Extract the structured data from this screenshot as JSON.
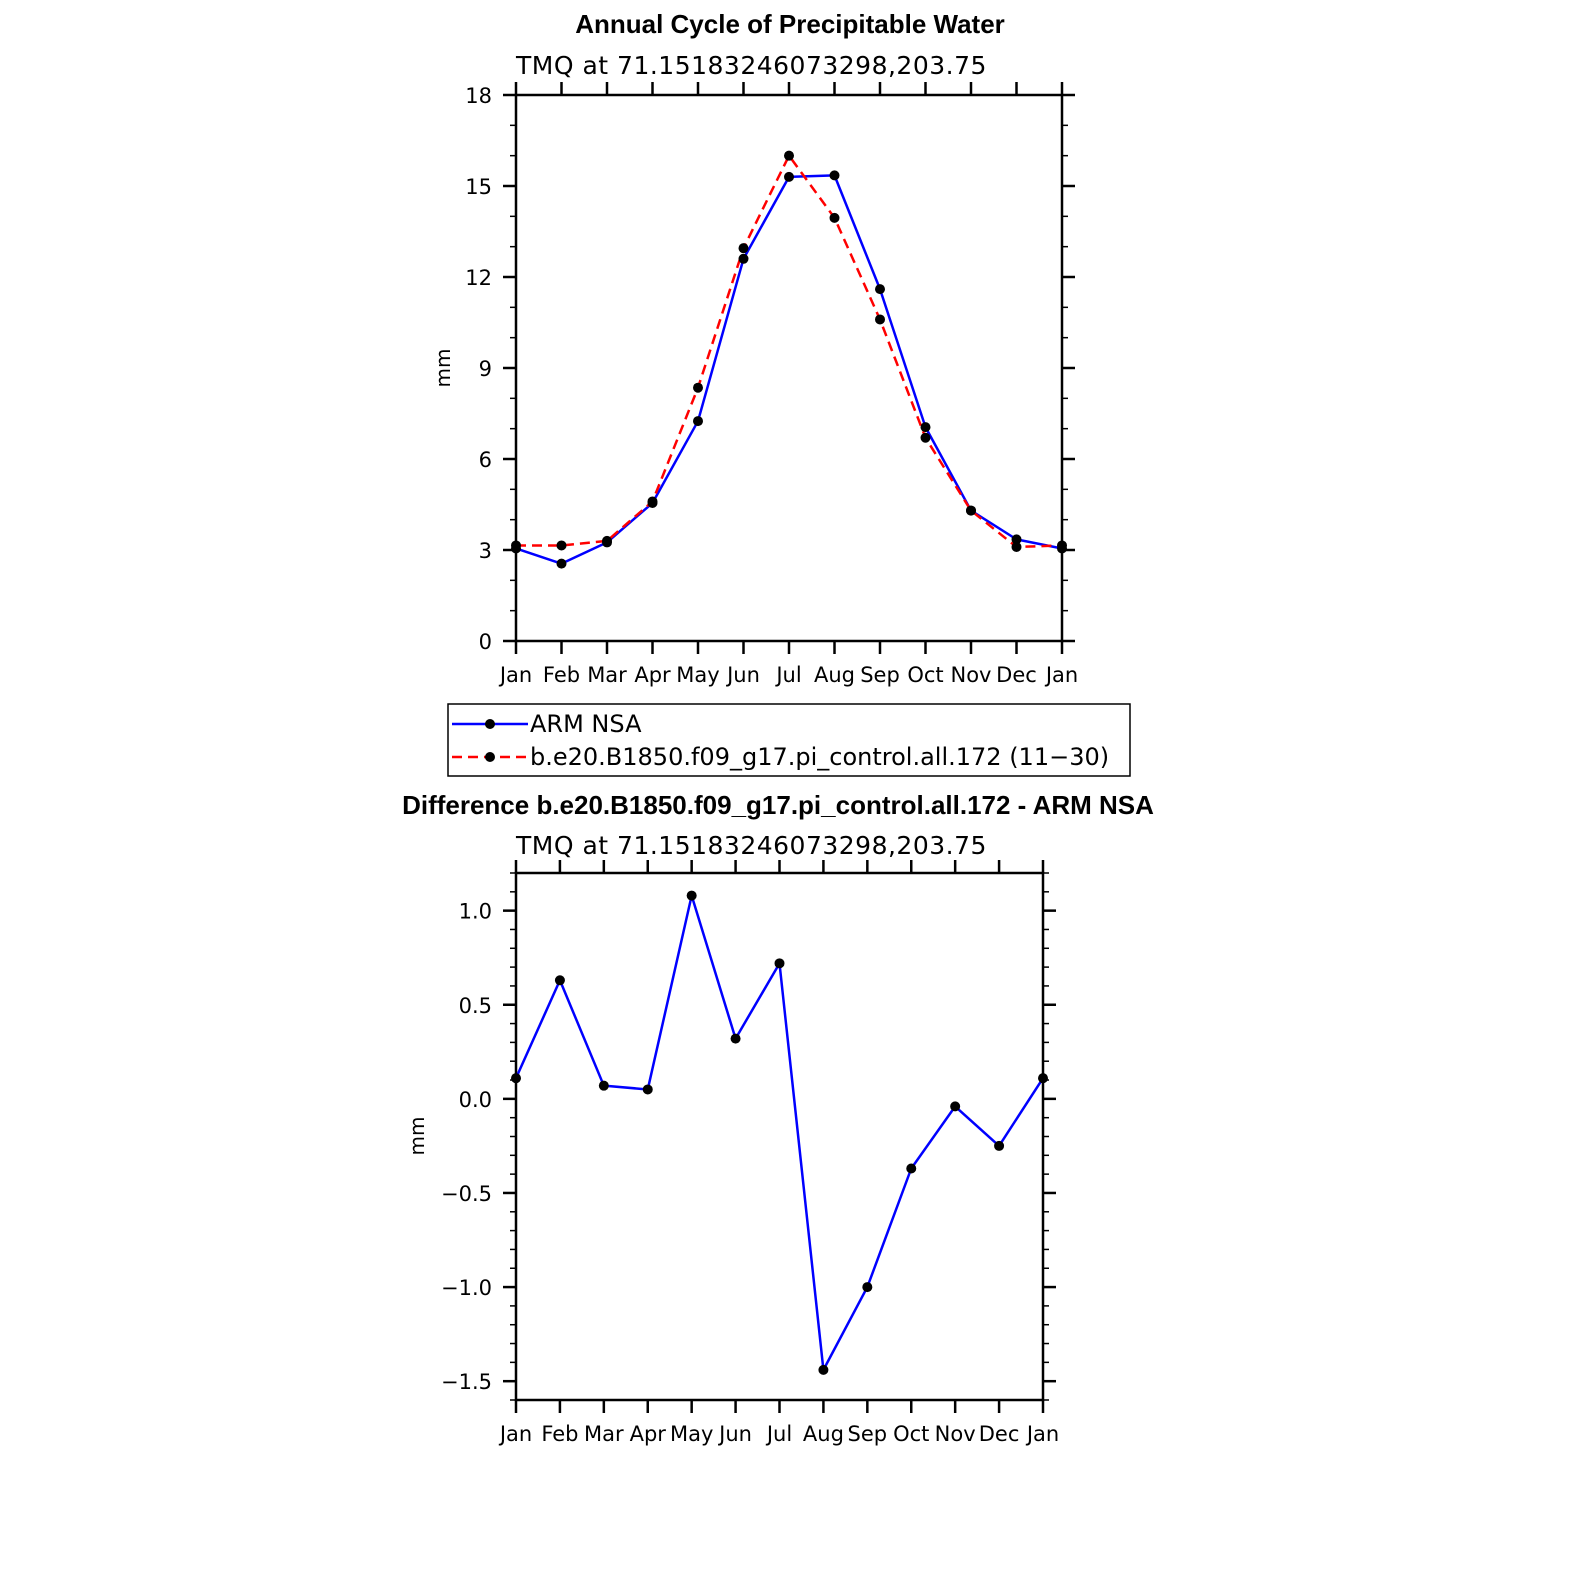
{
  "chart_data": [
    {
      "type": "line",
      "title": "Annual Cycle of Precipitable Water",
      "subtitle": "TMQ at 71.15183246073298,203.75",
      "ylabel": "mm",
      "xlabel": "",
      "categories": [
        "Jan",
        "Feb",
        "Mar",
        "Apr",
        "May",
        "Jun",
        "Jul",
        "Aug",
        "Sep",
        "Oct",
        "Nov",
        "Dec",
        "Jan"
      ],
      "ylim": [
        0,
        18
      ],
      "yticks": [
        0,
        3,
        6,
        9,
        12,
        15,
        18
      ],
      "y_minor_step": 1,
      "series": [
        {
          "name": "ARM NSA",
          "color": "#0000ff",
          "dash": "solid",
          "values": [
            3.05,
            2.55,
            3.25,
            4.55,
            7.25,
            12.6,
            15.3,
            15.35,
            11.6,
            7.05,
            4.3,
            3.35,
            3.05
          ]
        },
        {
          "name": "b.e20.B1850.f09_g17.pi_control.all.172 (11−30)",
          "color": "#ff0000",
          "dash": "dashed",
          "values": [
            3.15,
            3.15,
            3.3,
            4.6,
            8.35,
            12.95,
            16.0,
            13.95,
            10.6,
            6.7,
            4.3,
            3.1,
            3.15
          ]
        }
      ],
      "legend_position": "bottom"
    },
    {
      "type": "line",
      "title": "Difference b.e20.B1850.f09_g17.pi_control.all.172 - ARM NSA",
      "subtitle": "TMQ at 71.15183246073298,203.75",
      "ylabel": "mm",
      "xlabel": "",
      "categories": [
        "Jan",
        "Feb",
        "Mar",
        "Apr",
        "May",
        "Jun",
        "Jul",
        "Aug",
        "Sep",
        "Oct",
        "Nov",
        "Dec",
        "Jan"
      ],
      "ylim": [
        -1.6,
        1.2
      ],
      "yticks": [
        -1.5,
        -1.0,
        -0.5,
        0.0,
        0.5,
        1.0
      ],
      "ytick_labels": [
        "−1.5",
        "−1.0",
        "−0.5",
        "0.0",
        "0.5",
        "1.0"
      ],
      "y_minor_step": 0.1,
      "series": [
        {
          "name": "Difference",
          "color": "#0000ff",
          "dash": "solid",
          "values": [
            0.11,
            0.63,
            0.07,
            0.05,
            1.08,
            0.32,
            0.72,
            -1.44,
            -1.0,
            -0.37,
            -0.04,
            -0.25,
            0.11
          ]
        }
      ]
    }
  ]
}
